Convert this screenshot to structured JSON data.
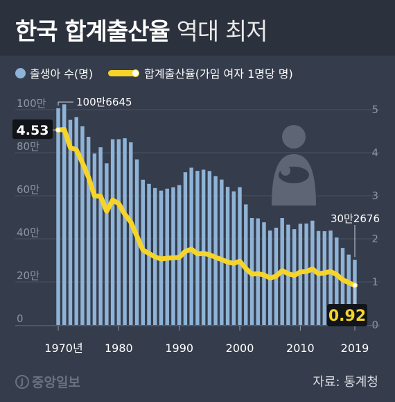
{
  "title": {
    "bold": "한국 합계출산율",
    "light": "역대 최저"
  },
  "legend": {
    "births": "출생아 수(명)",
    "rate": "합계출산율(가임 여자 1명당 명)"
  },
  "source": "자료: 통계청",
  "logo": {
    "mark": "J",
    "text": "중앙일보"
  },
  "colors": {
    "bars": "#8fb3d6",
    "line": "#f6d42a",
    "background": "#353c4b"
  },
  "icon": "mother-baby-icon",
  "chart_data": {
    "type": "bar+line",
    "years": [
      1970,
      1971,
      1972,
      1973,
      1974,
      1975,
      1976,
      1977,
      1978,
      1979,
      1980,
      1981,
      1982,
      1983,
      1984,
      1985,
      1986,
      1987,
      1988,
      1989,
      1990,
      1991,
      1992,
      1993,
      1994,
      1995,
      1996,
      1997,
      1998,
      1999,
      2000,
      2001,
      2002,
      2003,
      2004,
      2005,
      2006,
      2007,
      2008,
      2009,
      2010,
      2011,
      2012,
      2013,
      2014,
      2015,
      2016,
      2017,
      2018,
      2019
    ],
    "x_tick_labels": [
      "1970년",
      "1980",
      "1990",
      "2000",
      "2010",
      "2019"
    ],
    "left_axis": {
      "ticks": [
        "0",
        "20만",
        "40만",
        "60만",
        "80만",
        "100만"
      ],
      "ylim": [
        0,
        1000000
      ]
    },
    "right_axis": {
      "ticks": [
        "0",
        "1",
        "2",
        "3",
        "4",
        "5"
      ],
      "ylim": [
        0,
        5
      ]
    },
    "series": [
      {
        "name": "출생아 수(명)",
        "axis": "left",
        "values": [
          1006645,
          1024773,
          952780,
          965521,
          922823,
          874030,
          796331,
          825339,
          750728,
          862669,
          862835,
          867409,
          848312,
          769155,
          674793,
          655489,
          636019,
          623831,
          633092,
          639431,
          649738,
          709275,
          730678,
          715826,
          721185,
          715020,
          691226,
          675394,
          641594,
          620668,
          640089,
          559934,
          496911,
          495036,
          476958,
          438707,
          451759,
          496822,
          465892,
          444849,
          470171,
          471265,
          484550,
          436455,
          435435,
          438420,
          406243,
          357771,
          326822,
          302676
        ]
      },
      {
        "name": "합계출산율(가임 여자 1명당 명)",
        "axis": "right",
        "values": [
          4.53,
          4.54,
          4.12,
          4.07,
          3.77,
          3.43,
          3.0,
          2.99,
          2.64,
          2.9,
          2.82,
          2.57,
          2.39,
          2.06,
          1.74,
          1.66,
          1.58,
          1.53,
          1.55,
          1.56,
          1.57,
          1.71,
          1.76,
          1.65,
          1.66,
          1.63,
          1.57,
          1.52,
          1.46,
          1.43,
          1.48,
          1.31,
          1.18,
          1.19,
          1.16,
          1.09,
          1.13,
          1.26,
          1.19,
          1.15,
          1.23,
          1.24,
          1.3,
          1.19,
          1.21,
          1.24,
          1.17,
          1.05,
          0.98,
          0.92
        ]
      }
    ],
    "annotations": {
      "first_births": "100만6645",
      "last_births": "30만2676",
      "first_rate": "4.53",
      "last_rate": "0.92"
    }
  }
}
